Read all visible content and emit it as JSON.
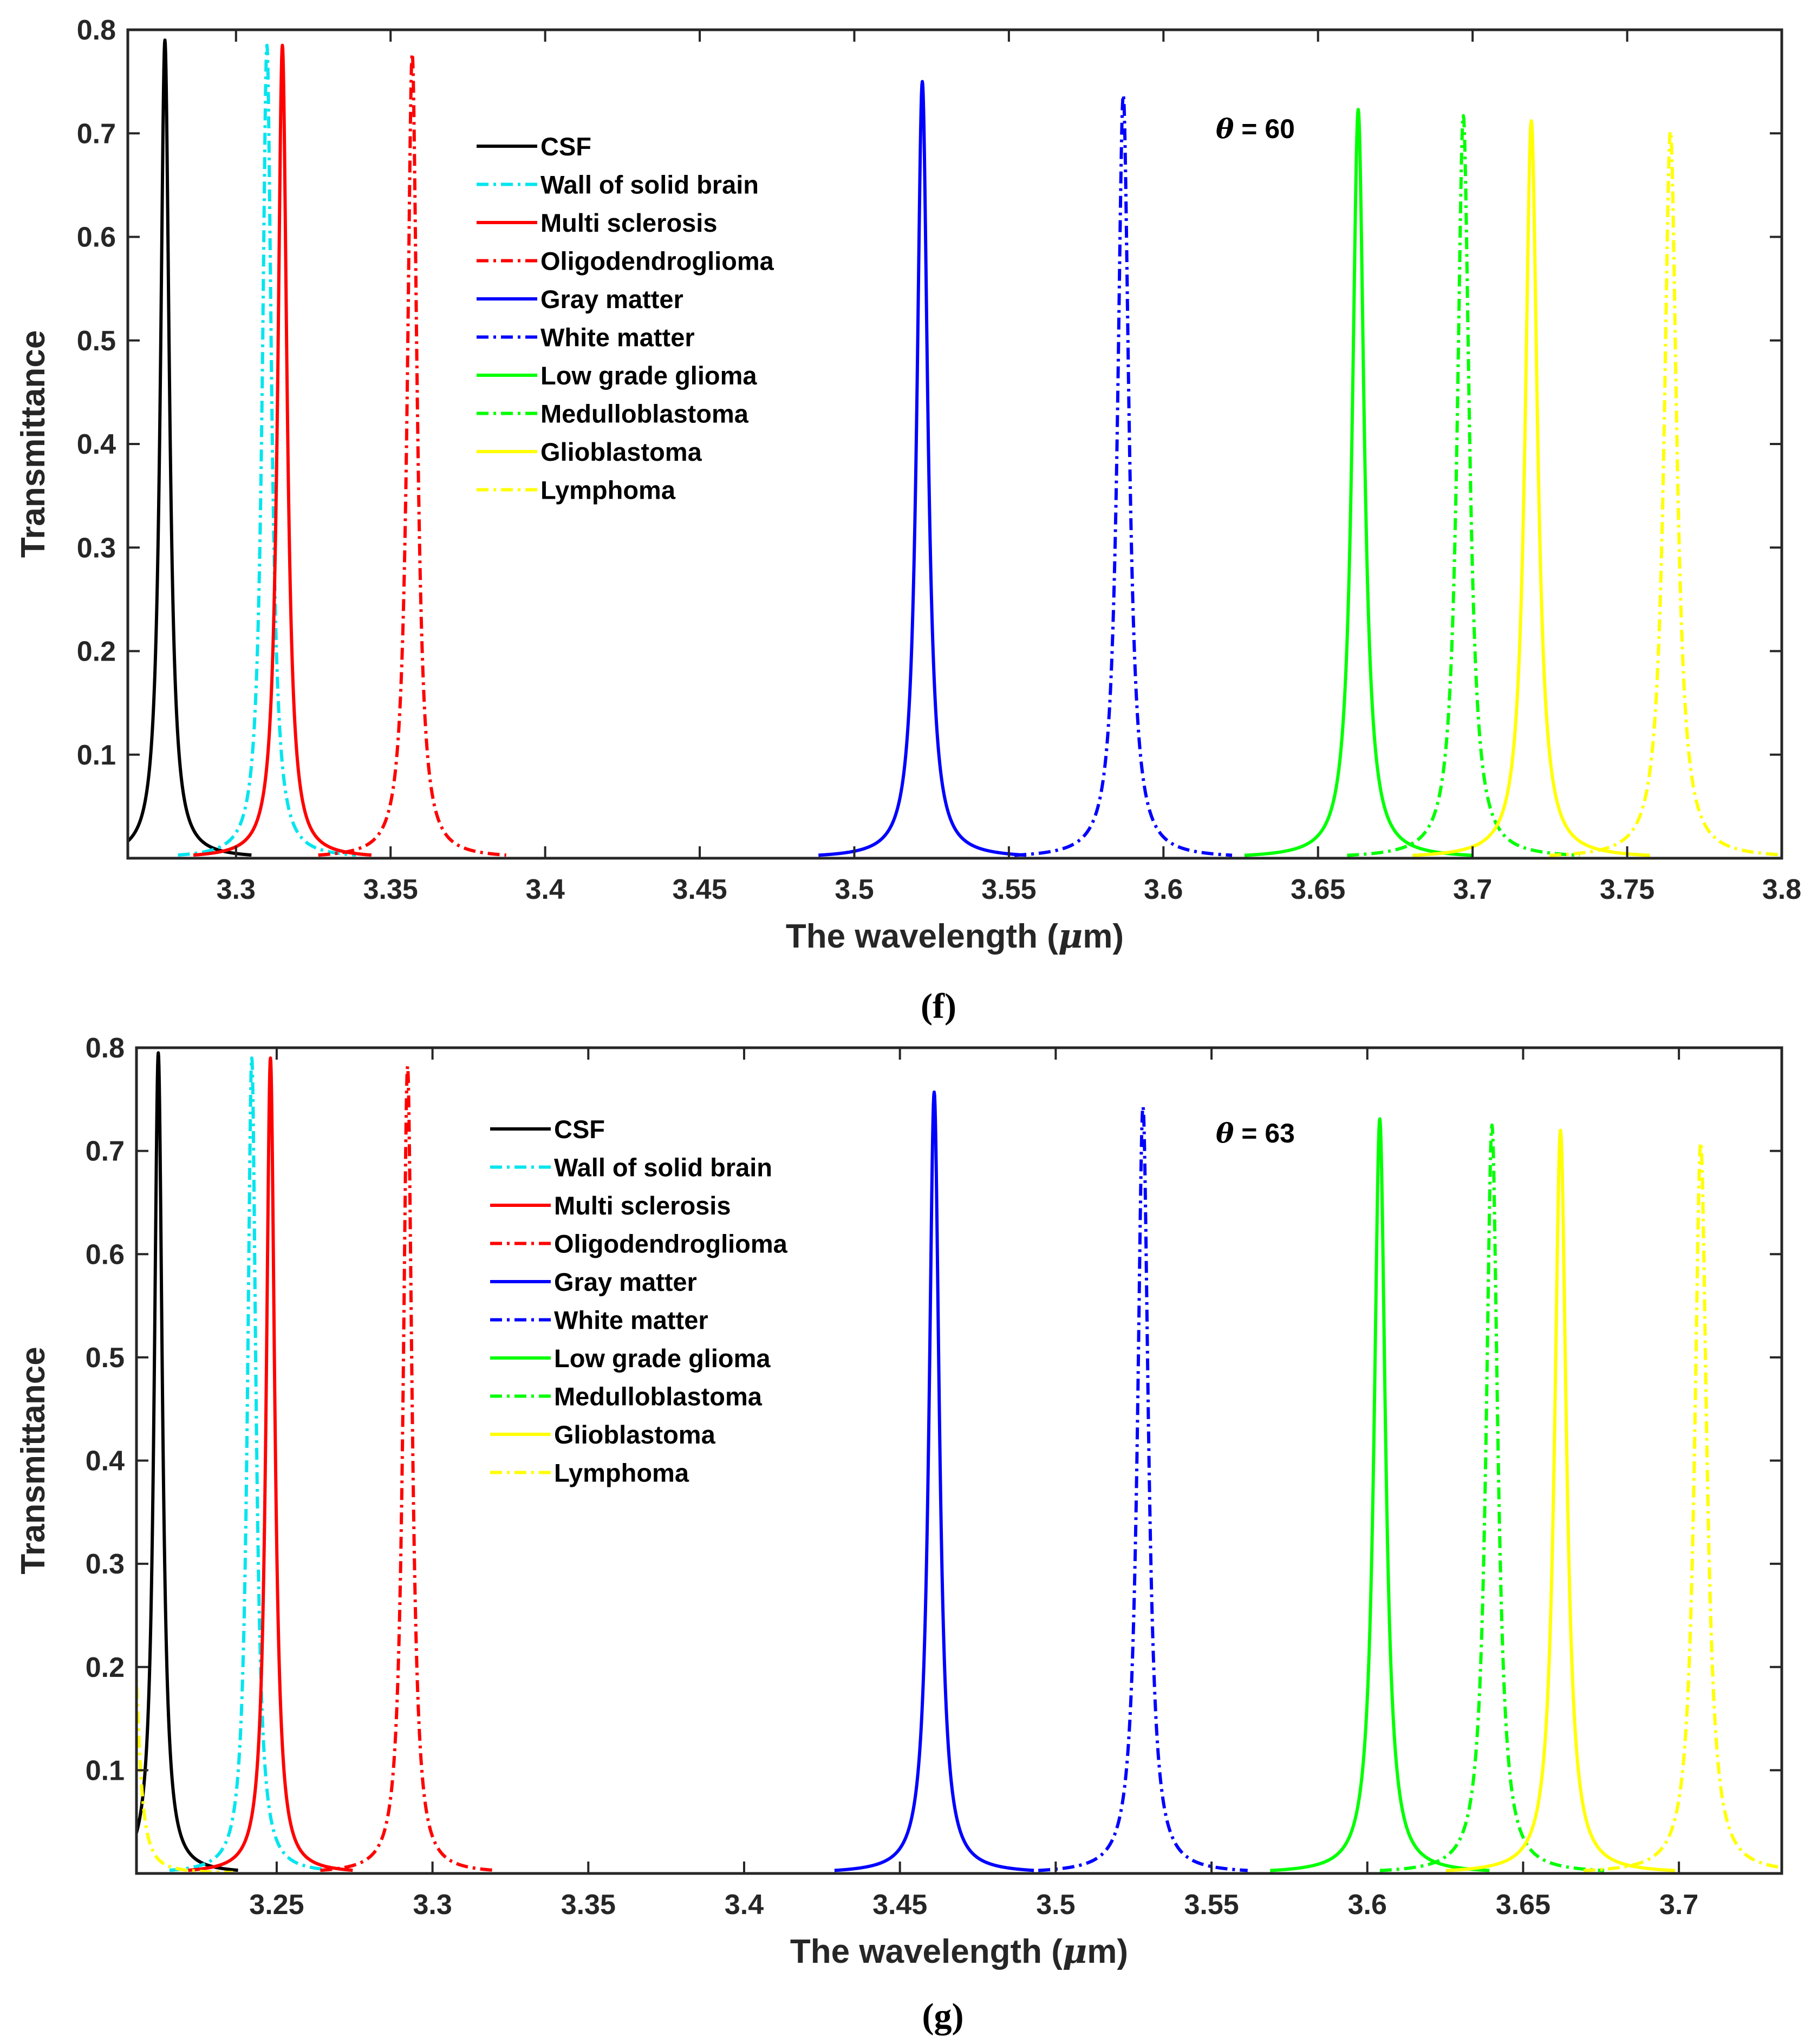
{
  "chart_data": [
    {
      "type": "line",
      "panel_label": "(f)",
      "title": "",
      "annotation": "θ = 60",
      "annotation_symbol": "θ",
      "annotation_value": "= 60",
      "xlabel_prefix": "The wavelength (",
      "xlabel_mu": "μ",
      "xlabel_suffix": "m)",
      "xlabel": "The wavelength (μm)",
      "ylabel": "Transmittance",
      "xlim": [
        3.265,
        3.8
      ],
      "ylim": [
        0.0,
        0.8
      ],
      "xticks": [
        "3.3",
        "3.35",
        "3.4",
        "3.45",
        "3.5",
        "3.55",
        "3.6",
        "3.65",
        "3.7",
        "3.75",
        "3.8"
      ],
      "yticks": [
        "0.1",
        "0.2",
        "0.3",
        "0.4",
        "0.5",
        "0.6",
        "0.7",
        "0.8"
      ],
      "grid": false,
      "legend_position": "upper-left-center",
      "series": [
        {
          "name": "CSF",
          "color": "#000000",
          "style": "solid",
          "peak_x": 3.277,
          "peak_y": 0.79,
          "fwhm": 0.0035
        },
        {
          "name": "Wall of solid brain",
          "color": "#00e5ee",
          "style": "dashdot",
          "peak_x": 3.31,
          "peak_y": 0.785,
          "fwhm": 0.0036
        },
        {
          "name": "Multi sclerosis",
          "color": "#ff0000",
          "style": "solid",
          "peak_x": 3.315,
          "peak_y": 0.785,
          "fwhm": 0.0036
        },
        {
          "name": "Oligodendroglioma",
          "color": "#ff0000",
          "style": "dashdot",
          "peak_x": 3.357,
          "peak_y": 0.777,
          "fwhm": 0.0038
        },
        {
          "name": "Gray matter",
          "color": "#0000ff",
          "style": "solid",
          "peak_x": 3.522,
          "peak_y": 0.75,
          "fwhm": 0.0042
        },
        {
          "name": "White matter",
          "color": "#0000ff",
          "style": "dashdot",
          "peak_x": 3.587,
          "peak_y": 0.737,
          "fwhm": 0.0044
        },
        {
          "name": "Low grade glioma",
          "color": "#00ff00",
          "style": "solid",
          "peak_x": 3.663,
          "peak_y": 0.723,
          "fwhm": 0.0046
        },
        {
          "name": "Medulloblastoma",
          "color": "#00ff00",
          "style": "dashdot",
          "peak_x": 3.697,
          "peak_y": 0.717,
          "fwhm": 0.0047
        },
        {
          "name": "Glioblastoma",
          "color": "#ffff00",
          "style": "solid",
          "peak_x": 3.719,
          "peak_y": 0.712,
          "fwhm": 0.0048
        },
        {
          "name": "Lymphoma",
          "color": "#ffff00",
          "style": "dashdot",
          "peak_x": 3.764,
          "peak_y": 0.702,
          "fwhm": 0.0049
        }
      ]
    },
    {
      "type": "line",
      "panel_label": "(g)",
      "title": "",
      "annotation": "θ = 63",
      "annotation_symbol": "θ",
      "annotation_value": "= 63",
      "xlabel_prefix": "The wavelength (",
      "xlabel_mu": "μ",
      "xlabel_suffix": "m)",
      "xlabel": "The wavelength (μm)",
      "ylabel": "Transmittance",
      "xlim": [
        3.205,
        3.733
      ],
      "ylim": [
        0.0,
        0.8
      ],
      "xticks": [
        "3.25",
        "3.3",
        "3.35",
        "3.4",
        "3.45",
        "3.5",
        "3.55",
        "3.6",
        "3.65",
        "3.7"
      ],
      "yticks": [
        "0.1",
        "0.2",
        "0.3",
        "0.4",
        "0.5",
        "0.6",
        "0.7",
        "0.8"
      ],
      "grid": false,
      "legend_position": "upper-left-center",
      "series": [
        {
          "name": "CSF",
          "color": "#000000",
          "style": "solid",
          "peak_x": 3.212,
          "peak_y": 0.795,
          "fwhm": 0.0032
        },
        {
          "name": "Wall of solid brain",
          "color": "#00e5ee",
          "style": "dashdot",
          "peak_x": 3.242,
          "peak_y": 0.79,
          "fwhm": 0.0033
        },
        {
          "name": "Multi sclerosis",
          "color": "#ff0000",
          "style": "solid",
          "peak_x": 3.248,
          "peak_y": 0.79,
          "fwhm": 0.0033
        },
        {
          "name": "Oligodendroglioma",
          "color": "#ff0000",
          "style": "dashdot",
          "peak_x": 3.292,
          "peak_y": 0.782,
          "fwhm": 0.0035
        },
        {
          "name": "Gray matter",
          "color": "#0000ff",
          "style": "solid",
          "peak_x": 3.461,
          "peak_y": 0.757,
          "fwhm": 0.004
        },
        {
          "name": "White matter",
          "color": "#0000ff",
          "style": "dashdot",
          "peak_x": 3.528,
          "peak_y": 0.743,
          "fwhm": 0.0042
        },
        {
          "name": "Low grade glioma",
          "color": "#00ff00",
          "style": "solid",
          "peak_x": 3.604,
          "peak_y": 0.731,
          "fwhm": 0.0044
        },
        {
          "name": "Medulloblastoma",
          "color": "#00ff00",
          "style": "dashdot",
          "peak_x": 3.64,
          "peak_y": 0.725,
          "fwhm": 0.0045
        },
        {
          "name": "Glioblastoma",
          "color": "#ffff00",
          "style": "solid",
          "peak_x": 3.662,
          "peak_y": 0.72,
          "fwhm": 0.0046
        },
        {
          "name": "Lymphoma",
          "color": "#ffff00",
          "style": "dashdot",
          "peak_x": 3.707,
          "peak_y": 0.708,
          "fwhm": 0.0047
        },
        {
          "name": "Lymphoma (lower-order tail)",
          "color": "#ffff00",
          "style": "dashdot",
          "peak_x": 3.204,
          "peak_y": 0.235,
          "fwhm": 0.004,
          "in_legend": false
        }
      ]
    }
  ]
}
